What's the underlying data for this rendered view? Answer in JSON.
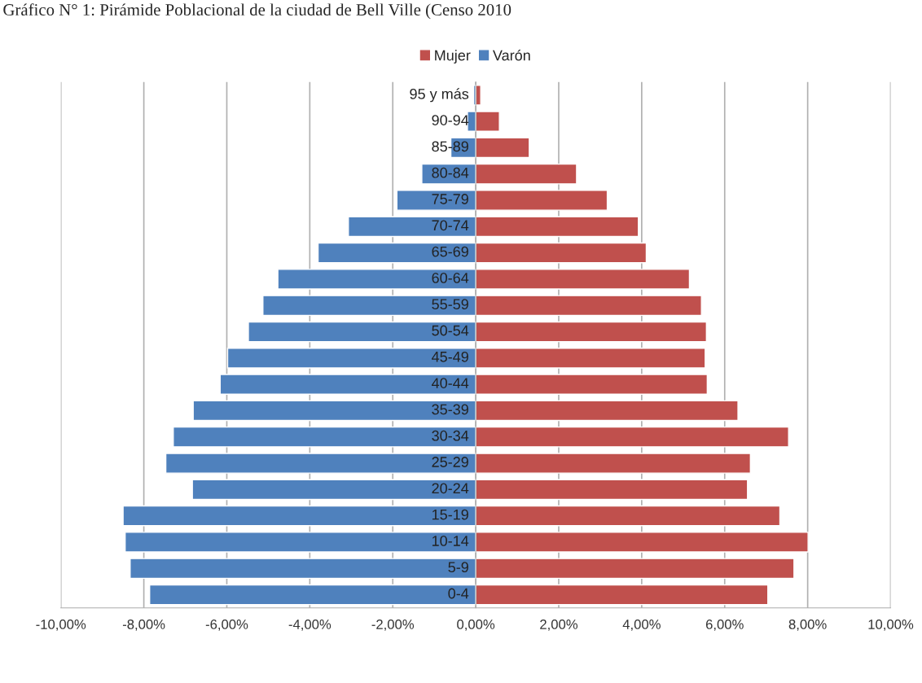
{
  "chart_data": {
    "type": "bar",
    "orientation": "horizontal",
    "stacked": true,
    "title": "Gráfico N° 1: Pirámide Poblacional de la ciudad de Bell Ville (Censo 2010",
    "categories": [
      "95 y más",
      "90-94",
      "85-89",
      "80-84",
      "75-79",
      "70-74",
      "65-69",
      "60-64",
      "55-59",
      "50-54",
      "45-49",
      "40-44",
      "35-39",
      "30-34",
      "25-29",
      "20-24",
      "15-19",
      "10-14",
      "5-9",
      "0-4"
    ],
    "series": [
      {
        "name": "Mujer",
        "color": "#c0504d",
        "values": [
          0.12,
          0.57,
          1.29,
          2.43,
          3.17,
          3.92,
          4.11,
          5.15,
          5.44,
          5.56,
          5.53,
          5.58,
          6.32,
          7.54,
          6.62,
          6.55,
          7.33,
          8.01,
          7.67,
          7.04
        ]
      },
      {
        "name": "Varón",
        "color": "#4f81bd",
        "values": [
          -0.05,
          -0.2,
          -0.6,
          -1.3,
          -1.9,
          -3.07,
          -3.8,
          -4.77,
          -5.13,
          -5.48,
          -5.98,
          -6.16,
          -6.81,
          -7.29,
          -7.47,
          -6.83,
          -8.5,
          -8.45,
          -8.33,
          -7.86
        ]
      }
    ],
    "xlim": [
      -10,
      10
    ],
    "xticks": [
      {
        "value": -10,
        "label": "-10,00%"
      },
      {
        "value": -8,
        "label": "-8,00%"
      },
      {
        "value": -6,
        "label": "-6,00%"
      },
      {
        "value": -4,
        "label": "-4,00%"
      },
      {
        "value": -2,
        "label": "-2,00%"
      },
      {
        "value": 0,
        "label": "0,00%"
      },
      {
        "value": 2,
        "label": "2,00%"
      },
      {
        "value": 4,
        "label": "4,00%"
      },
      {
        "value": 6,
        "label": "6,00%"
      },
      {
        "value": 8,
        "label": "8,00%"
      },
      {
        "value": 10,
        "label": "10,00%"
      }
    ],
    "grid": "x",
    "legend": "top"
  }
}
